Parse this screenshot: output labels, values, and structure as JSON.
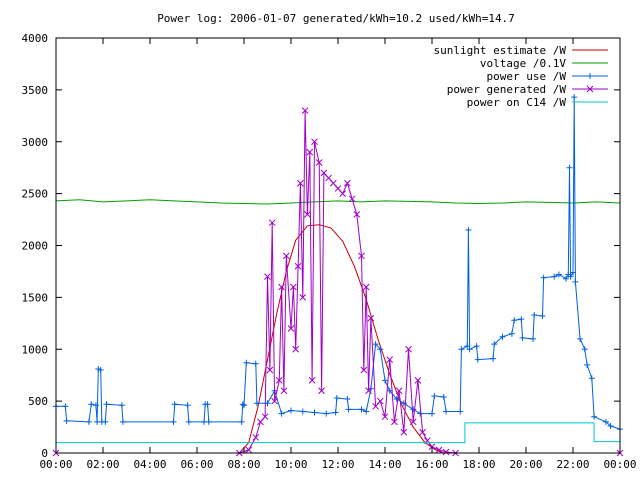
{
  "chart_data": {
    "type": "line",
    "title": "Power log: 2006-01-07 generated/kWh=10.2 used/kWh=14.7",
    "xlabel": "",
    "ylabel": "",
    "xlim": [
      0,
      24
    ],
    "ylim": [
      0,
      4000
    ],
    "x_ticks": [
      "00:00",
      "02:00",
      "04:00",
      "06:00",
      "08:00",
      "10:00",
      "12:00",
      "14:00",
      "16:00",
      "18:00",
      "20:00",
      "22:00",
      "00:00"
    ],
    "y_ticks": [
      "0",
      "500",
      "1000",
      "1500",
      "2000",
      "2500",
      "3000",
      "3500",
      "4000"
    ],
    "grid": false,
    "legend_position": "top-right",
    "series": [
      {
        "name": "sunlight estimate /W",
        "color": "#cc0000",
        "marker": "none",
        "points": [
          [
            0,
            0
          ],
          [
            7.8,
            0
          ],
          [
            8.2,
            100
          ],
          [
            8.6,
            450
          ],
          [
            9.0,
            900
          ],
          [
            9.4,
            1350
          ],
          [
            9.8,
            1750
          ],
          [
            10.2,
            2050
          ],
          [
            10.7,
            2190
          ],
          [
            11.2,
            2200
          ],
          [
            11.7,
            2170
          ],
          [
            12.2,
            2040
          ],
          [
            12.7,
            1800
          ],
          [
            13.2,
            1480
          ],
          [
            13.7,
            1100
          ],
          [
            14.2,
            760
          ],
          [
            14.7,
            470
          ],
          [
            15.2,
            250
          ],
          [
            15.7,
            100
          ],
          [
            16.2,
            25
          ],
          [
            16.5,
            0
          ],
          [
            24,
            0
          ]
        ]
      },
      {
        "name": "voltage /0.1V",
        "color": "#00a000",
        "marker": "none",
        "points": [
          [
            0,
            2430
          ],
          [
            1,
            2440
          ],
          [
            2,
            2420
          ],
          [
            3,
            2430
          ],
          [
            4,
            2440
          ],
          [
            5,
            2430
          ],
          [
            6,
            2420
          ],
          [
            7,
            2410
          ],
          [
            8,
            2405
          ],
          [
            9,
            2400
          ],
          [
            10,
            2410
          ],
          [
            11,
            2420
          ],
          [
            12,
            2430
          ],
          [
            13,
            2420
          ],
          [
            14,
            2430
          ],
          [
            15,
            2425
          ],
          [
            16,
            2420
          ],
          [
            17,
            2410
          ],
          [
            18,
            2405
          ],
          [
            19,
            2410
          ],
          [
            20,
            2420
          ],
          [
            21,
            2415
          ],
          [
            22,
            2410
          ],
          [
            23,
            2420
          ],
          [
            24,
            2410
          ]
        ]
      },
      {
        "name": "power use /W",
        "color": "#0060e0",
        "marker": "plus",
        "points": [
          [
            0,
            450
          ],
          [
            0.4,
            450
          ],
          [
            0.45,
            310
          ],
          [
            1.4,
            300
          ],
          [
            1.5,
            470
          ],
          [
            1.7,
            460
          ],
          [
            1.75,
            300
          ],
          [
            1.8,
            810
          ],
          [
            1.9,
            800
          ],
          [
            1.95,
            300
          ],
          [
            2.1,
            300
          ],
          [
            2.15,
            470
          ],
          [
            2.8,
            460
          ],
          [
            2.85,
            300
          ],
          [
            5.0,
            300
          ],
          [
            5.05,
            470
          ],
          [
            5.6,
            460
          ],
          [
            5.65,
            300
          ],
          [
            6.3,
            300
          ],
          [
            6.35,
            470
          ],
          [
            6.45,
            470
          ],
          [
            6.5,
            300
          ],
          [
            7.9,
            300
          ],
          [
            7.95,
            470
          ],
          [
            8.0,
            460
          ],
          [
            8.1,
            870
          ],
          [
            8.5,
            860
          ],
          [
            8.55,
            480
          ],
          [
            9.0,
            480
          ],
          [
            9.3,
            600
          ],
          [
            9.6,
            380
          ],
          [
            10.0,
            410
          ],
          [
            10.5,
            400
          ],
          [
            11.0,
            390
          ],
          [
            11.5,
            380
          ],
          [
            11.9,
            390
          ],
          [
            11.95,
            530
          ],
          [
            12.4,
            520
          ],
          [
            12.45,
            420
          ],
          [
            13.0,
            420
          ],
          [
            13.2,
            400
          ],
          [
            13.4,
            620
          ],
          [
            13.6,
            1050
          ],
          [
            13.8,
            1000
          ],
          [
            14.0,
            700
          ],
          [
            14.2,
            600
          ],
          [
            14.5,
            520
          ],
          [
            14.8,
            480
          ],
          [
            15.2,
            420
          ],
          [
            15.5,
            380
          ],
          [
            16.0,
            380
          ],
          [
            16.1,
            550
          ],
          [
            16.5,
            540
          ],
          [
            16.6,
            400
          ],
          [
            17.2,
            400
          ],
          [
            17.25,
            1000
          ],
          [
            17.5,
            1030
          ],
          [
            17.55,
            2150
          ],
          [
            17.6,
            1000
          ],
          [
            17.9,
            1030
          ],
          [
            17.95,
            900
          ],
          [
            18.6,
            910
          ],
          [
            18.65,
            1050
          ],
          [
            19.0,
            1120
          ],
          [
            19.4,
            1150
          ],
          [
            19.5,
            1280
          ],
          [
            19.8,
            1290
          ],
          [
            19.85,
            1110
          ],
          [
            20.3,
            1100
          ],
          [
            20.35,
            1330
          ],
          [
            20.7,
            1320
          ],
          [
            20.75,
            1690
          ],
          [
            21.2,
            1700
          ],
          [
            21.4,
            1720
          ],
          [
            21.7,
            1680
          ],
          [
            21.8,
            1720
          ],
          [
            21.85,
            2750
          ],
          [
            21.9,
            1700
          ],
          [
            22.0,
            1740
          ],
          [
            22.05,
            3430
          ],
          [
            22.1,
            1650
          ],
          [
            22.3,
            1100
          ],
          [
            22.5,
            1000
          ],
          [
            22.6,
            850
          ],
          [
            22.8,
            720
          ],
          [
            22.9,
            350
          ],
          [
            23.4,
            300
          ],
          [
            23.6,
            260
          ],
          [
            24,
            230
          ]
        ]
      },
      {
        "name": "power generated /W",
        "color": "#a000c8",
        "marker": "cross",
        "points": [
          [
            0,
            0
          ],
          [
            7.8,
            0
          ],
          [
            8.2,
            30
          ],
          [
            8.5,
            150
          ],
          [
            8.7,
            300
          ],
          [
            8.9,
            350
          ],
          [
            9.0,
            1700
          ],
          [
            9.1,
            800
          ],
          [
            9.2,
            2220
          ],
          [
            9.3,
            500
          ],
          [
            9.5,
            700
          ],
          [
            9.6,
            1600
          ],
          [
            9.7,
            600
          ],
          [
            9.8,
            1900
          ],
          [
            10.0,
            1200
          ],
          [
            10.1,
            1600
          ],
          [
            10.2,
            1000
          ],
          [
            10.3,
            1800
          ],
          [
            10.4,
            2600
          ],
          [
            10.5,
            1500
          ],
          [
            10.6,
            3300
          ],
          [
            10.7,
            2300
          ],
          [
            10.8,
            2900
          ],
          [
            10.9,
            700
          ],
          [
            11.0,
            3000
          ],
          [
            11.2,
            2800
          ],
          [
            11.3,
            600
          ],
          [
            11.4,
            2700
          ],
          [
            11.6,
            2650
          ],
          [
            11.8,
            2600
          ],
          [
            12.0,
            2550
          ],
          [
            12.2,
            2500
          ],
          [
            12.4,
            2600
          ],
          [
            12.6,
            2450
          ],
          [
            12.8,
            2300
          ],
          [
            13.0,
            1900
          ],
          [
            13.1,
            800
          ],
          [
            13.2,
            1600
          ],
          [
            13.3,
            600
          ],
          [
            13.4,
            1300
          ],
          [
            13.6,
            450
          ],
          [
            13.8,
            500
          ],
          [
            14.0,
            350
          ],
          [
            14.2,
            900
          ],
          [
            14.4,
            300
          ],
          [
            14.6,
            600
          ],
          [
            14.8,
            200
          ],
          [
            15.0,
            1000
          ],
          [
            15.2,
            300
          ],
          [
            15.4,
            700
          ],
          [
            15.6,
            200
          ],
          [
            15.8,
            120
          ],
          [
            16.0,
            60
          ],
          [
            16.3,
            30
          ],
          [
            16.6,
            10
          ],
          [
            17.0,
            0
          ],
          [
            24,
            0
          ]
        ]
      },
      {
        "name": "power on C14 /W",
        "color": "#00c8c8",
        "marker": "none",
        "points": [
          [
            0,
            100
          ],
          [
            17.4,
            100
          ],
          [
            17.4,
            290
          ],
          [
            22.9,
            290
          ],
          [
            22.9,
            110
          ],
          [
            24,
            110
          ]
        ]
      }
    ]
  }
}
